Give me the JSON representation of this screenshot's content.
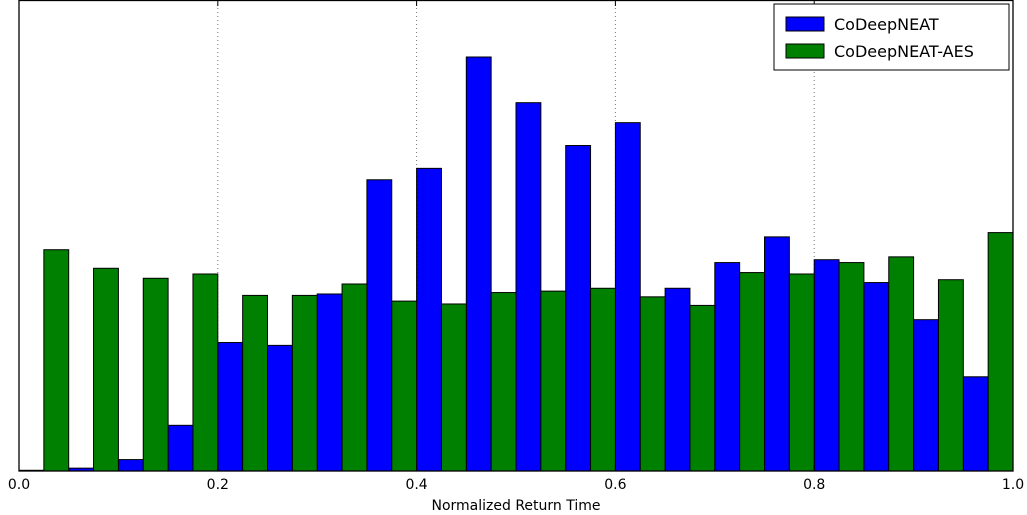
{
  "chart_data": {
    "type": "bar",
    "xlabel": "Normalized Return Time",
    "ylabel": "",
    "xlim": [
      0.0,
      1.0
    ],
    "x_ticks": [
      "0.0",
      "0.2",
      "0.4",
      "0.6",
      "0.8",
      "1.0"
    ],
    "x_tick_values": [
      0.0,
      0.2,
      0.4,
      0.6,
      0.8,
      1.0
    ],
    "grid": "x-only, dotted",
    "legend_position": "top-right",
    "bin_width": 0.05,
    "bin_starts": [
      0.0,
      0.05,
      0.1,
      0.15,
      0.2,
      0.25,
      0.3,
      0.35,
      0.4,
      0.45,
      0.5,
      0.55,
      0.6,
      0.65,
      0.7,
      0.75,
      0.8,
      0.85,
      0.9,
      0.95
    ],
    "ylim": [
      0,
      290
    ],
    "series": [
      {
        "name": "CoDeepNEAT",
        "color": "#0000ff",
        "values": [
          0.5,
          2,
          8,
          32,
          90,
          88,
          124,
          204,
          212,
          290,
          258,
          228,
          244,
          128,
          146,
          164,
          148,
          132,
          106,
          66
        ]
      },
      {
        "name": "CoDeepNEAT-AES",
        "color": "#008000",
        "values": [
          155,
          142,
          135,
          138,
          123,
          123,
          131,
          119,
          117,
          125,
          126,
          128,
          122,
          116,
          139,
          138,
          146,
          150,
          134,
          167
        ]
      }
    ]
  }
}
